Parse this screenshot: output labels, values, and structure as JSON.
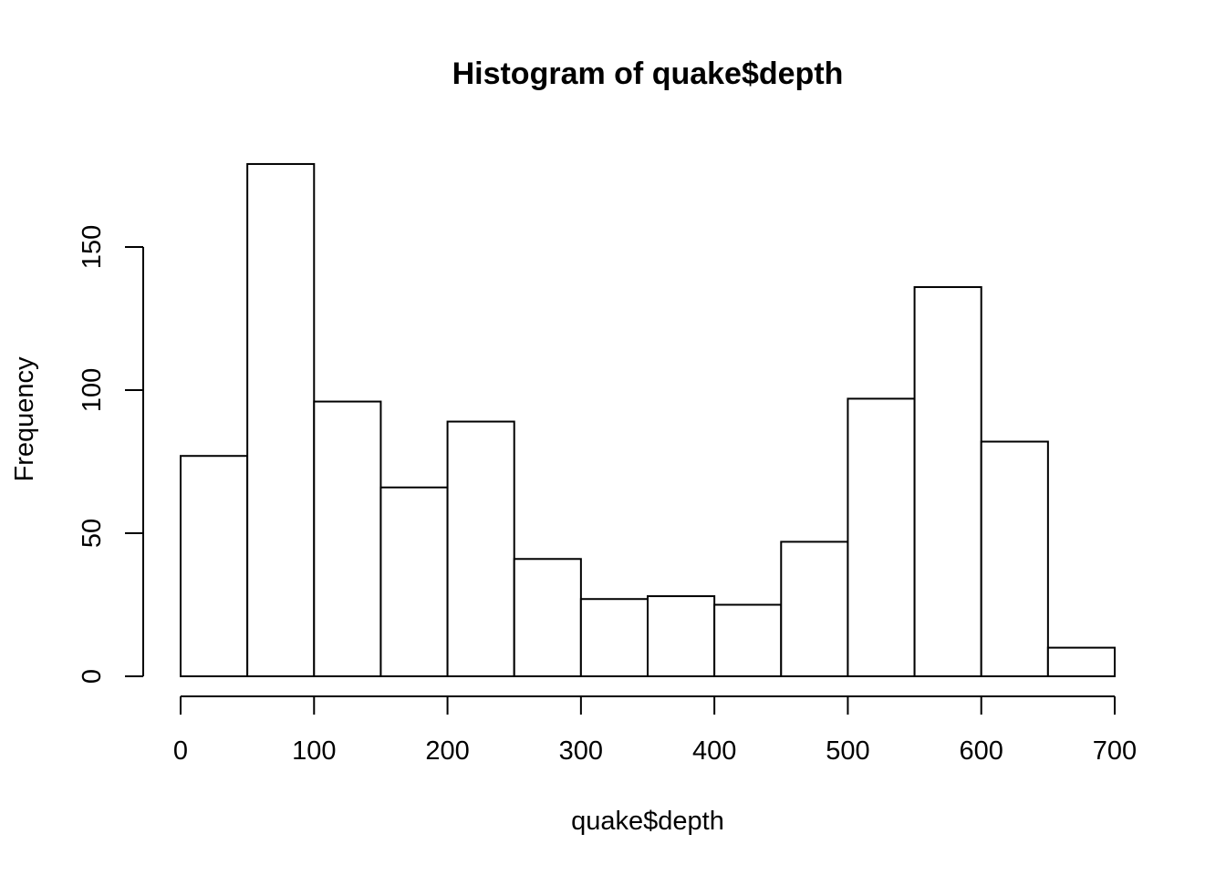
{
  "chart_data": {
    "type": "bar",
    "title": "Histogram of quake$depth",
    "xlabel": "quake$depth",
    "ylabel": "Frequency",
    "bin_edges": [
      0,
      50,
      100,
      150,
      200,
      250,
      300,
      350,
      400,
      450,
      500,
      550,
      600,
      650,
      700
    ],
    "values": [
      77,
      179,
      96,
      66,
      89,
      41,
      27,
      28,
      25,
      47,
      97,
      136,
      82,
      10
    ],
    "xlim": [
      0,
      700
    ],
    "ylim": [
      0,
      180
    ],
    "x_ticks": [
      0,
      100,
      200,
      300,
      400,
      500,
      600,
      700
    ],
    "y_ticks": [
      0,
      50,
      100,
      150
    ],
    "grid": false
  }
}
